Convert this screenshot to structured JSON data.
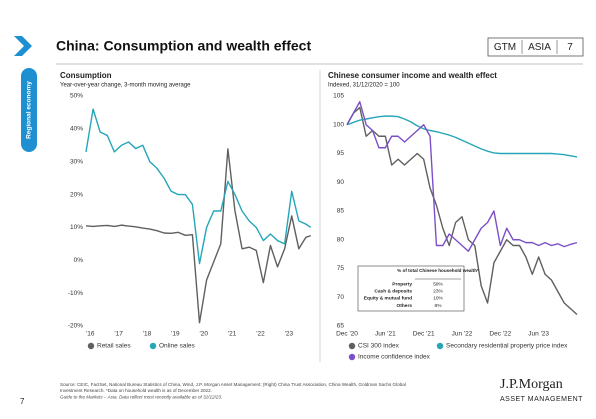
{
  "header": {
    "title": "China: Consumption and wealth effect",
    "badge": [
      "GTM",
      "ASIA",
      "7"
    ],
    "section": "Regional economy"
  },
  "chart_data": [
    {
      "type": "line",
      "title": "Consumption",
      "subtitle": "Year-over-year change, 3-month moving average",
      "x": [
        2016,
        2016.25,
        2016.5,
        2016.75,
        2017,
        2017.25,
        2017.5,
        2017.75,
        2018,
        2018.25,
        2018.5,
        2018.75,
        2019,
        2019.25,
        2019.5,
        2019.75,
        2020,
        2020.25,
        2020.5,
        2020.75,
        2021,
        2021.25,
        2021.5,
        2021.75,
        2022,
        2022.25,
        2022.5,
        2022.75,
        2023,
        2023.25,
        2023.5,
        2023.75,
        2023.92
      ],
      "xlim": [
        2016,
        2024
      ],
      "xticks": [
        {
          "value": 2016,
          "label": "'16"
        },
        {
          "value": 2017,
          "label": "'17"
        },
        {
          "value": 2018,
          "label": "'18"
        },
        {
          "value": 2019,
          "label": "'19"
        },
        {
          "value": 2020,
          "label": "'20"
        },
        {
          "value": 2021,
          "label": "'21"
        },
        {
          "value": 2022,
          "label": "'22"
        },
        {
          "value": 2023,
          "label": "'23"
        }
      ],
      "ylim": [
        -20,
        50
      ],
      "yticks": [
        {
          "value": -20,
          "label": "-20%"
        },
        {
          "value": -10,
          "label": "-10%"
        },
        {
          "value": 0,
          "label": "0%"
        },
        {
          "value": 10,
          "label": "10%"
        },
        {
          "value": 20,
          "label": "20%"
        },
        {
          "value": 30,
          "label": "30%"
        },
        {
          "value": 40,
          "label": "40%"
        },
        {
          "value": 50,
          "label": "50%"
        }
      ],
      "series": [
        {
          "name": "Retail sales",
          "color": "#5f5f5f",
          "values": [
            10.5,
            10.3,
            10.5,
            10.6,
            10.3,
            10.7,
            10.4,
            10.2,
            9.8,
            9.5,
            9.0,
            8.3,
            8.2,
            8.5,
            7.6,
            7.8,
            -19,
            -6,
            -0.5,
            5,
            33.9,
            15,
            3.5,
            4,
            3,
            -6.8,
            4.5,
            -2,
            3.5,
            13.5,
            3.5,
            7,
            7.5
          ]
        },
        {
          "name": "Online sales",
          "color": "#25a6b8",
          "values": [
            33,
            46,
            39,
            38,
            33,
            35,
            36,
            34,
            35,
            30,
            28,
            25,
            21,
            20,
            20,
            17,
            -1,
            10,
            15,
            15,
            24,
            20,
            15,
            12,
            10,
            6,
            8,
            6,
            5,
            21,
            12,
            11,
            10
          ]
        }
      ]
    },
    {
      "type": "line",
      "title": "Chinese consumer income and wealth effect",
      "subtitle": "Indexed, 31/12/2020 = 100",
      "categories": [
        "Dec '20",
        null,
        null,
        null,
        null,
        null,
        "Jun '21",
        null,
        null,
        null,
        null,
        null,
        "Dec '21",
        null,
        null,
        null,
        null,
        null,
        "Jun '22",
        null,
        null,
        null,
        null,
        null,
        "Dec '22",
        null,
        null,
        null,
        null,
        null,
        "Jun '23",
        null,
        null,
        null,
        null,
        null,
        null
      ],
      "ylim": [
        65,
        105
      ],
      "yticks": [
        65,
        70,
        75,
        80,
        85,
        90,
        95,
        100,
        105
      ],
      "series": [
        {
          "name": "CSI 300 index",
          "color": "#5f5f5f",
          "values": [
            100,
            102,
            103,
            98,
            99,
            98,
            98,
            93,
            94,
            93,
            94,
            95,
            94,
            89,
            86,
            82,
            79,
            83,
            84,
            80,
            79,
            72,
            69,
            76,
            78,
            80,
            79,
            79,
            77,
            74,
            77,
            74,
            73,
            71,
            69,
            68,
            67
          ]
        },
        {
          "name": "Secondary residential property price index",
          "color": "#25a6b8",
          "values": [
            100,
            100.4,
            100.8,
            101,
            101.2,
            101.4,
            101.5,
            101.5,
            101.4,
            101,
            100.5,
            99.8,
            99.3,
            99,
            98.8,
            98.5,
            98.2,
            97.8,
            97.3,
            96.8,
            96.3,
            95.8,
            95.4,
            95.1,
            95,
            95,
            95,
            95,
            95,
            95,
            95,
            95,
            95,
            94.9,
            94.8,
            94.6,
            94.4
          ]
        },
        {
          "name": "Income confidence index",
          "color": "#7b4fc8",
          "values": [
            100,
            102,
            104,
            100,
            99,
            96,
            96,
            98,
            98,
            97,
            98,
            99,
            100,
            98,
            79,
            79,
            81,
            80,
            79,
            78,
            80,
            82,
            83,
            85,
            79,
            82,
            80,
            80,
            79.5,
            79.5,
            79,
            79.5,
            79,
            79.3,
            78.8,
            79.2,
            79.5
          ]
        }
      ],
      "inset": {
        "title": "% of total Chinese household wealth*",
        "rows": [
          [
            "Property",
            "59%"
          ],
          [
            "Cash & deposits",
            "23%"
          ],
          [
            "Equity & mutual fund",
            "10%"
          ],
          [
            "Others",
            "8%"
          ]
        ]
      }
    }
  ],
  "footer": {
    "source": [
      "Source: CEIC, FactSet, National Bureau Statistics of China, Wind, J.P. Morgan Asset Management; (Right) China Trust Association, China Wealth, Goldman Sachs Global",
      "Investment Research. *Data on household wealth is as of December 2022.",
      "Guide to the Markets – Asia. Data reflect most recently available as of 31/12/23."
    ],
    "page": "7",
    "brand": "J.P.Morgan",
    "brand_sub": "ASSET MANAGEMENT"
  }
}
